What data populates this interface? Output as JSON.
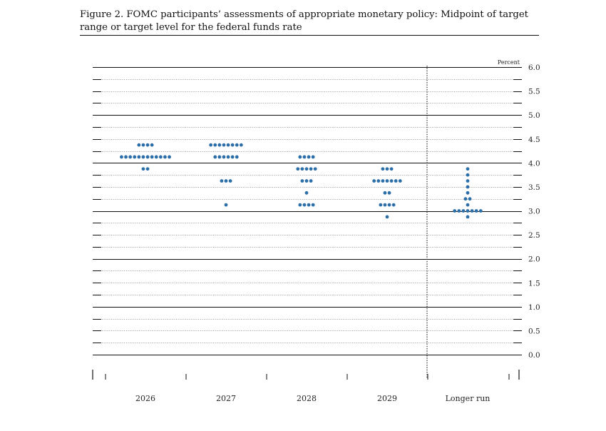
{
  "title": "Figure 2. FOMC participants’ assessments of appropriate monetary policy: Midpoint of target range or target level for the federal funds rate",
  "chart_data": {
    "type": "scatter",
    "title": "Figure 2. FOMC participants’ assessments of appropriate monetary policy: Midpoint of target range or target level for the federal funds rate",
    "ylabel": "Percent",
    "xlabel": "",
    "ylim": [
      0,
      6
    ],
    "y_ticks": [
      "6.0",
      "5.5",
      "5.0",
      "4.5",
      "4.0",
      "3.5",
      "3.0",
      "2.5",
      "2.0",
      "1.5",
      "1.0",
      "0.5",
      "0.0"
    ],
    "categories": [
      "2026",
      "2027",
      "2028",
      "2029",
      "Longer run"
    ],
    "grid": "horizontal",
    "dot_color": "#2c6ea8",
    "dots": [
      {
        "category": "2026",
        "points": [
          {
            "y": 4.375,
            "count": 4
          },
          {
            "y": 4.125,
            "count": 12
          },
          {
            "y": 3.875,
            "count": 2
          }
        ]
      },
      {
        "category": "2027",
        "points": [
          {
            "y": 4.375,
            "count": 8
          },
          {
            "y": 4.125,
            "count": 6
          },
          {
            "y": 3.625,
            "count": 3
          },
          {
            "y": 3.125,
            "count": 1
          }
        ]
      },
      {
        "category": "2028",
        "points": [
          {
            "y": 4.125,
            "count": 4
          },
          {
            "y": 3.875,
            "count": 5
          },
          {
            "y": 3.625,
            "count": 3
          },
          {
            "y": 3.375,
            "count": 1
          },
          {
            "y": 3.125,
            "count": 4
          }
        ]
      },
      {
        "category": "2029",
        "points": [
          {
            "y": 3.875,
            "count": 3
          },
          {
            "y": 3.625,
            "count": 7
          },
          {
            "y": 3.375,
            "count": 2
          },
          {
            "y": 3.125,
            "count": 4
          },
          {
            "y": 2.875,
            "count": 1
          }
        ]
      },
      {
        "category": "Longer run",
        "points": [
          {
            "y": 3.875,
            "count": 1
          },
          {
            "y": 3.75,
            "count": 1
          },
          {
            "y": 3.625,
            "count": 1
          },
          {
            "y": 3.5,
            "count": 1
          },
          {
            "y": 3.375,
            "count": 1
          },
          {
            "y": 3.25,
            "count": 2
          },
          {
            "y": 3.125,
            "count": 1
          },
          {
            "y": 3.0,
            "count": 7
          },
          {
            "y": 2.875,
            "count": 1
          }
        ]
      }
    ]
  }
}
